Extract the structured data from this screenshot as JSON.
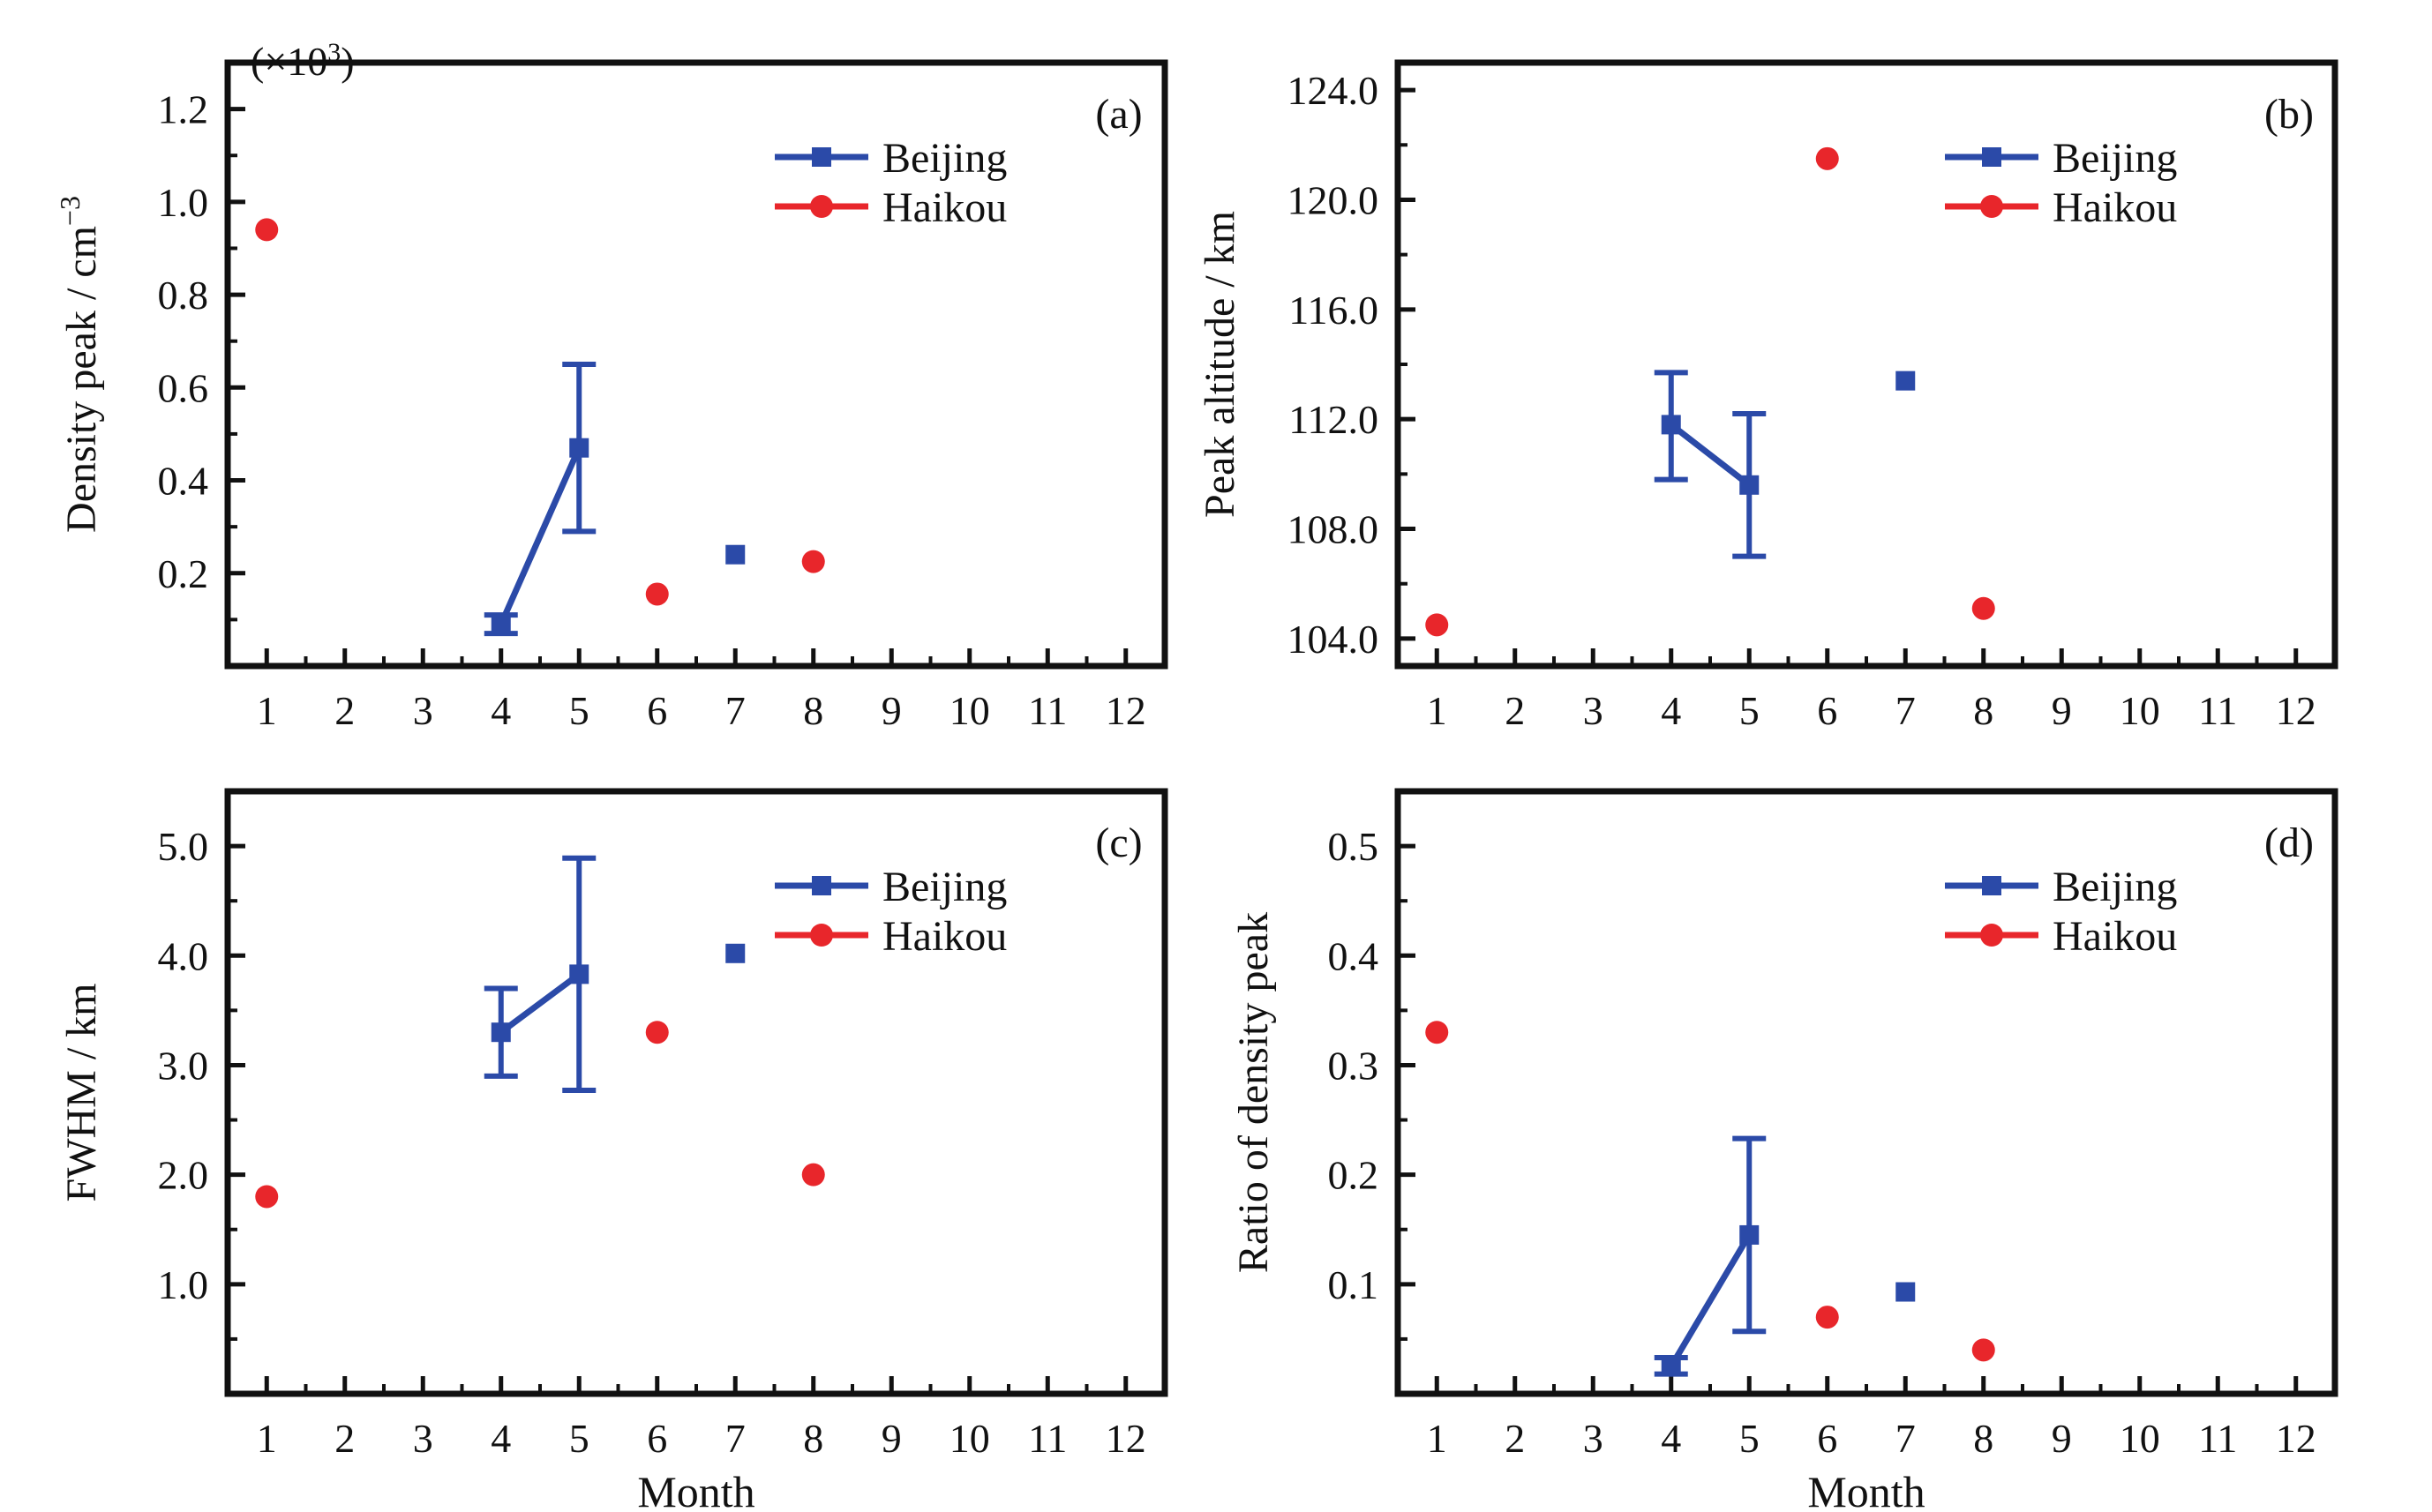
{
  "figure": {
    "shared_xlabel": "Month",
    "legend": {
      "beijing": {
        "label": "Beijing",
        "color": "#2b4aa8",
        "marker": "square"
      },
      "haikou": {
        "label": "Haikou",
        "color": "#e8262b",
        "marker": "circle"
      }
    }
  },
  "chart_data": [
    {
      "panel": "(a)",
      "type": "scatter",
      "ylabel": "Density peak / cm",
      "ylabel_sup": "−3",
      "y_multiplier": "(×10",
      "y_multiplier_sup": "3",
      "y_multiplier_close": ")",
      "xlim": [
        0.5,
        12.5
      ],
      "ylim": [
        0,
        1.3
      ],
      "yticks": [
        0.2,
        0.4,
        0.6,
        0.8,
        1.0,
        1.2
      ],
      "ytick_labels": [
        "0.2",
        "0.4",
        "0.6",
        "0.8",
        "1.0",
        "1.2"
      ],
      "xticks": [
        1,
        2,
        3,
        4,
        5,
        6,
        7,
        8,
        9,
        10,
        11,
        12
      ],
      "xtick_labels": [
        "1",
        "2",
        "3",
        "4",
        "5",
        "6",
        "7",
        "8",
        "9",
        "10",
        "11",
        "12"
      ],
      "grid": false,
      "legend_position": "top-right",
      "series": [
        {
          "name": "Beijing",
          "x": [
            4,
            5,
            7
          ],
          "y": [
            0.09,
            0.47,
            0.24
          ],
          "err_low": [
            0.07,
            0.29,
            null
          ],
          "err_high": [
            0.11,
            0.65,
            null
          ],
          "line_segments": [
            [
              0,
              1
            ]
          ]
        },
        {
          "name": "Haikou",
          "x": [
            1,
            6,
            8
          ],
          "y": [
            0.94,
            0.155,
            0.225
          ]
        }
      ]
    },
    {
      "panel": "(b)",
      "type": "scatter",
      "ylabel": "Peak altitude / km",
      "xlim": [
        0.5,
        12.5
      ],
      "ylim": [
        103,
        125
      ],
      "yticks": [
        104,
        108,
        112,
        116,
        120,
        124
      ],
      "ytick_labels": [
        "104.0",
        "108.0",
        "112.0",
        "116.0",
        "120.0",
        "124.0"
      ],
      "xticks": [
        1,
        2,
        3,
        4,
        5,
        6,
        7,
        8,
        9,
        10,
        11,
        12
      ],
      "xtick_labels": [
        "1",
        "2",
        "3",
        "4",
        "5",
        "6",
        "7",
        "8",
        "9",
        "10",
        "11",
        "12"
      ],
      "grid": false,
      "legend_position": "top-right",
      "series": [
        {
          "name": "Beijing",
          "x": [
            4,
            5,
            7
          ],
          "y": [
            111.8,
            109.6,
            113.4
          ],
          "err_low": [
            109.8,
            107.0,
            null
          ],
          "err_high": [
            113.7,
            112.2,
            null
          ],
          "line_segments": [
            [
              0,
              1
            ]
          ]
        },
        {
          "name": "Haikou",
          "x": [
            1,
            6,
            8
          ],
          "y": [
            104.5,
            121.5,
            105.1
          ]
        }
      ]
    },
    {
      "panel": "(c)",
      "type": "scatter",
      "ylabel": "FWHM / km",
      "xlim": [
        0.5,
        12.5
      ],
      "ylim": [
        0,
        5.5
      ],
      "yticks": [
        1,
        2,
        3,
        4,
        5
      ],
      "ytick_labels": [
        "1.0",
        "2.0",
        "3.0",
        "4.0",
        "5.0"
      ],
      "xticks": [
        1,
        2,
        3,
        4,
        5,
        6,
        7,
        8,
        9,
        10,
        11,
        12
      ],
      "xtick_labels": [
        "1",
        "2",
        "3",
        "4",
        "5",
        "6",
        "7",
        "8",
        "9",
        "10",
        "11",
        "12"
      ],
      "grid": false,
      "legend_position": "top-right",
      "xlabel": "Month",
      "series": [
        {
          "name": "Beijing",
          "x": [
            4,
            5,
            7
          ],
          "y": [
            3.3,
            3.83,
            4.02
          ],
          "err_low": [
            2.9,
            2.77,
            null
          ],
          "err_high": [
            3.7,
            4.89,
            null
          ],
          "line_segments": [
            [
              0,
              1
            ]
          ]
        },
        {
          "name": "Haikou",
          "x": [
            1,
            6,
            8
          ],
          "y": [
            1.8,
            3.3,
            2.0
          ]
        }
      ]
    },
    {
      "panel": "(d)",
      "type": "scatter",
      "ylabel": "Ratio of density peak",
      "xlim": [
        0.5,
        12.5
      ],
      "ylim": [
        0,
        0.55
      ],
      "yticks": [
        0.1,
        0.2,
        0.3,
        0.4,
        0.5
      ],
      "ytick_labels": [
        "0.1",
        "0.2",
        "0.3",
        "0.4",
        "0.5"
      ],
      "xticks": [
        1,
        2,
        3,
        4,
        5,
        6,
        7,
        8,
        9,
        10,
        11,
        12
      ],
      "xtick_labels": [
        "1",
        "2",
        "3",
        "4",
        "5",
        "6",
        "7",
        "8",
        "9",
        "10",
        "11",
        "12"
      ],
      "grid": false,
      "legend_position": "top-right",
      "xlabel": "Month",
      "series": [
        {
          "name": "Beijing",
          "x": [
            4,
            5,
            7
          ],
          "y": [
            0.025,
            0.145,
            0.093
          ],
          "err_low": [
            0.018,
            0.057,
            null
          ],
          "err_high": [
            0.033,
            0.233,
            null
          ],
          "line_segments": [
            [
              0,
              1
            ]
          ]
        },
        {
          "name": "Haikou",
          "x": [
            1,
            6,
            8
          ],
          "y": [
            0.33,
            0.07,
            0.04
          ]
        }
      ]
    }
  ]
}
